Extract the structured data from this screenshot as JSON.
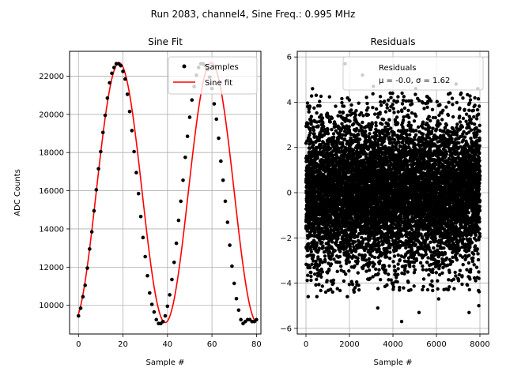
{
  "figure": {
    "suptitle": "Run 2083, channel4, Sine Freq.: 0.995 MHz"
  },
  "chart_data": [
    {
      "type": "line",
      "title": "Sine Fit",
      "xlabel": "Sample #",
      "ylabel": "ADC Counts",
      "xlim": [
        -4,
        82
      ],
      "ylim": [
        8500,
        23300
      ],
      "grid": true,
      "xticks": [
        0,
        20,
        40,
        60,
        80
      ],
      "xtick_labels": [
        "0",
        "20",
        "40",
        "60",
        "80"
      ],
      "yticks": [
        10000,
        12000,
        14000,
        16000,
        18000,
        20000,
        22000
      ],
      "ytick_labels": [
        "10000",
        "12000",
        "14000",
        "16000",
        "18000",
        "20000",
        "22000"
      ],
      "model": {
        "offset": 15900,
        "amplitude": 6800,
        "period_samples": 41.4,
        "peak_sample": 18.3
      },
      "series": [
        {
          "name": "Samples",
          "style": "markers",
          "color": "#000000",
          "x": [
            0,
            1,
            2,
            3,
            4,
            5,
            6,
            7,
            8,
            9,
            10,
            11,
            12,
            13,
            14,
            15,
            16,
            17,
            18,
            19,
            20,
            21,
            22,
            23,
            24,
            25,
            26,
            27,
            28,
            29,
            30,
            31,
            32,
            33,
            34,
            35,
            36,
            37,
            38,
            39,
            40,
            41,
            42,
            43,
            44,
            45,
            46,
            47,
            48,
            49,
            50,
            51,
            52,
            53,
            54,
            55,
            56,
            57,
            58,
            59,
            60,
            61,
            62,
            63,
            64,
            65,
            66,
            67,
            68,
            69,
            70,
            71,
            72,
            73,
            74,
            75,
            76,
            77,
            78,
            79,
            80
          ],
          "y": [
            9450,
            9850,
            10450,
            11050,
            11950,
            12950,
            13850,
            14950,
            16050,
            17150,
            18050,
            19050,
            19950,
            20850,
            21650,
            22150,
            22450,
            22650,
            22650,
            22550,
            22250,
            21850,
            21050,
            20150,
            19150,
            18050,
            16950,
            15850,
            14650,
            13550,
            12550,
            11550,
            10650,
            10050,
            9650,
            9250,
            9050,
            9050,
            9150,
            9450,
            9950,
            10550,
            11350,
            12250,
            13250,
            14450,
            15450,
            16550,
            17750,
            18850,
            19850,
            20750,
            21450,
            22050,
            22450,
            22650,
            22650,
            22550,
            22350,
            21950,
            21350,
            20550,
            19750,
            18750,
            17550,
            16550,
            15450,
            14350,
            13150,
            12050,
            11150,
            10350,
            9750,
            9250,
            9050,
            9150,
            9250,
            9250,
            9150,
            9150,
            9250
          ]
        },
        {
          "name": "Sine fit",
          "style": "line",
          "color": "#ff0000"
        }
      ],
      "legend": {
        "position": "top-right",
        "entries": [
          "Samples",
          "Sine fit"
        ]
      }
    },
    {
      "type": "scatter",
      "title": "Residuals",
      "xlabel": "Sample #",
      "ylabel": "",
      "xlim": [
        -400,
        8400
      ],
      "ylim": [
        -6.25,
        6.25
      ],
      "grid": true,
      "xticks": [
        0,
        2000,
        4000,
        6000,
        8000
      ],
      "xtick_labels": [
        "0",
        "2000",
        "4000",
        "6000",
        "8000"
      ],
      "yticks": [
        -6,
        -4,
        -2,
        0,
        2,
        4,
        6
      ],
      "ytick_labels": [
        "−6",
        "−4",
        "−2",
        "0",
        "2",
        "4",
        "6"
      ],
      "stats": {
        "n_points": 8000,
        "mean": -0.0,
        "sigma": 1.62
      },
      "series": [
        {
          "name": "Residuals",
          "style": "markers",
          "color": "#000000",
          "outliers": [
            {
              "x": 1800,
              "y": 5.7
            },
            {
              "x": 4400,
              "y": -5.7
            },
            {
              "x": 5200,
              "y": -5.3
            },
            {
              "x": 7500,
              "y": -5.3
            },
            {
              "x": 2600,
              "y": 5.2
            },
            {
              "x": 300,
              "y": 4.6
            },
            {
              "x": 7900,
              "y": 4.6
            },
            {
              "x": 500,
              "y": -4.6
            },
            {
              "x": 1900,
              "y": -4.6
            },
            {
              "x": 6100,
              "y": -4.7
            },
            {
              "x": 100,
              "y": -4.6
            },
            {
              "x": 3300,
              "y": -5.1
            },
            {
              "x": 3100,
              "y": 4.7
            },
            {
              "x": 6900,
              "y": 4.8
            },
            {
              "x": 7950,
              "y": -5.0
            },
            {
              "x": 5050,
              "y": 4.6
            }
          ]
        }
      ],
      "legend": {
        "position": "top-right",
        "entries": [
          "Residuals"
        ],
        "subtitle": "μ = -0.0, σ = 1.62"
      }
    }
  ]
}
